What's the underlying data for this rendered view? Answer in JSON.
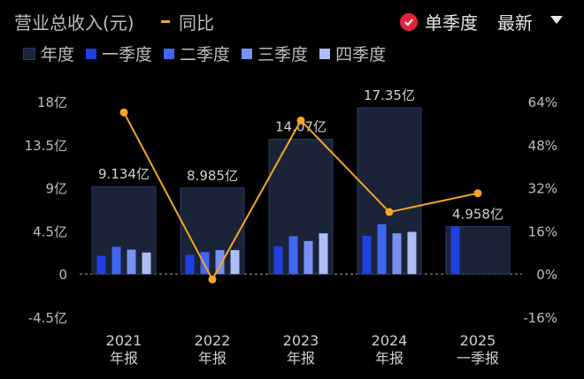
{
  "header": {
    "title": "营业总收入(元)",
    "yoy_legend": "同比",
    "toggle_label": "单季度",
    "sort_label": "最新"
  },
  "legend": [
    {
      "label": "年度",
      "color": "#1b2338"
    },
    {
      "label": "一季度",
      "color": "#1f3fe0"
    },
    {
      "label": "二季度",
      "color": "#3f67f0"
    },
    {
      "label": "三季度",
      "color": "#7792f2"
    },
    {
      "label": "四季度",
      "color": "#aebdf6"
    }
  ],
  "colors": {
    "yoy_line": "#f5a623",
    "annual_fill": "#1b2338",
    "annual_stroke": "#2b3a66",
    "grid": "#222",
    "zero": "#9a9a9a"
  },
  "chart_data": {
    "type": "bar",
    "categories": [
      [
        "2021",
        "年报"
      ],
      [
        "2022",
        "年报"
      ],
      [
        "2023",
        "年报"
      ],
      [
        "2024",
        "年报"
      ],
      [
        "2025",
        "一季报"
      ]
    ],
    "annual": {
      "name": "年度",
      "values": [
        9.134,
        8.985,
        14.07,
        17.35,
        4.958
      ],
      "labels": [
        "9.134亿",
        "8.985亿",
        "14.07亿",
        "17.35亿",
        "4.958亿"
      ]
    },
    "quarters": [
      {
        "name": "一季度",
        "values": [
          1.9,
          2.0,
          2.9,
          4.0,
          4.958
        ]
      },
      {
        "name": "二季度",
        "values": [
          2.85,
          2.3,
          3.95,
          5.2,
          null
        ]
      },
      {
        "name": "三季度",
        "values": [
          2.55,
          2.5,
          3.45,
          4.25,
          null
        ]
      },
      {
        "name": "四季度",
        "values": [
          2.25,
          2.5,
          4.25,
          4.4,
          null
        ]
      }
    ],
    "yoy": {
      "name": "同比",
      "values": [
        60,
        -2,
        57,
        23,
        30
      ]
    },
    "y_left": {
      "ticks": [
        "18亿",
        "13.5亿",
        "9亿",
        "4.5亿",
        "0",
        "-4.5亿"
      ],
      "tick_values": [
        18,
        13.5,
        9,
        4.5,
        0,
        -4.5
      ],
      "range": [
        -4.5,
        18
      ]
    },
    "y_right": {
      "ticks": [
        "64%",
        "48%",
        "32%",
        "16%",
        "0%",
        "-16%"
      ],
      "tick_values": [
        64,
        48,
        32,
        16,
        0,
        -16
      ],
      "range": [
        -16,
        64
      ]
    }
  }
}
